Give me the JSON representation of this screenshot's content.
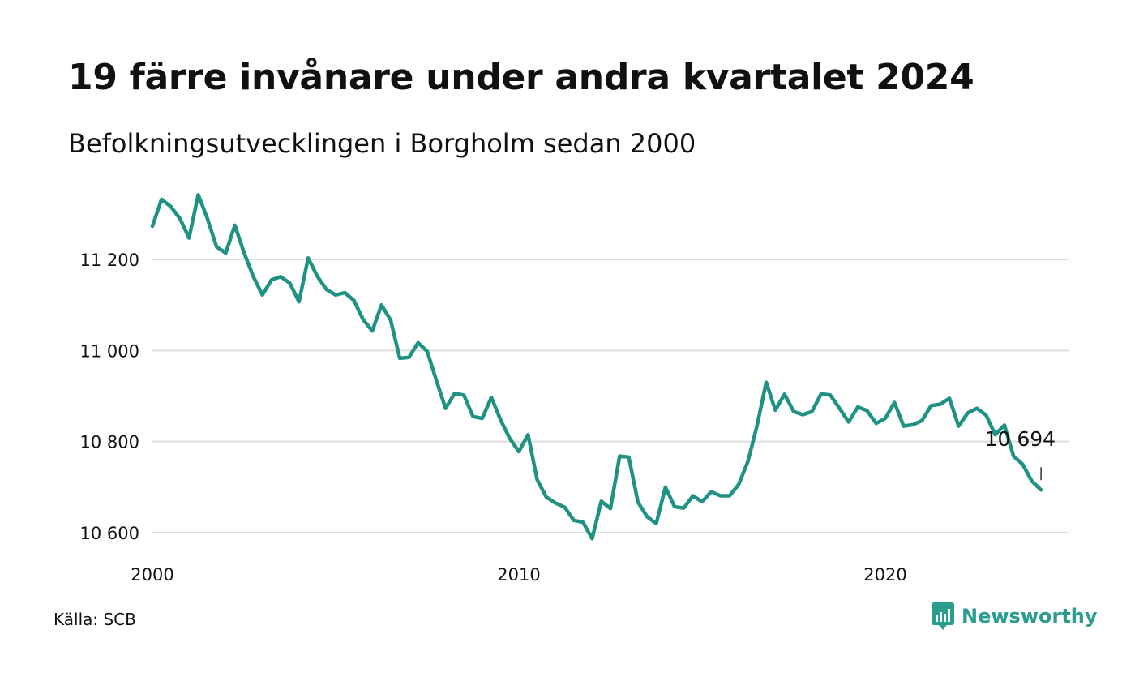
{
  "header": {
    "title": "19 färre invånare under andra kvartalet 2024",
    "subtitle": "Befolkningsutvecklingen i Borgholm sedan 2000"
  },
  "footer": {
    "source": "Källa: SCB",
    "brand": "Newsworthy"
  },
  "colors": {
    "line": "#1f9284",
    "grid": "#dddddd",
    "text": "#111111",
    "brand": "#2a9d8f"
  },
  "chart_data": {
    "type": "line",
    "x_ticks": [
      2000,
      2010,
      2020
    ],
    "x_tick_labels": [
      "2000",
      "2010",
      "2020"
    ],
    "y_ticks": [
      10600,
      10800,
      11000,
      11200
    ],
    "y_tick_labels": [
      "10 600",
      "10 800",
      "11 000",
      "11 200"
    ],
    "xlim": [
      2000,
      2025
    ],
    "ylim": [
      10575,
      11375
    ],
    "grid": true,
    "annotation": {
      "text": "10 694",
      "x": 2024.25,
      "y": 10694
    },
    "x": [
      2000.0,
      2000.25,
      2000.5,
      2000.75,
      2001.0,
      2001.25,
      2001.5,
      2001.75,
      2002.0,
      2002.25,
      2002.5,
      2002.75,
      2003.0,
      2003.25,
      2003.5,
      2003.75,
      2004.0,
      2004.25,
      2004.5,
      2004.75,
      2005.0,
      2005.25,
      2005.5,
      2005.75,
      2006.0,
      2006.25,
      2006.5,
      2006.75,
      2007.0,
      2007.25,
      2007.5,
      2007.75,
      2008.0,
      2008.25,
      2008.5,
      2008.75,
      2009.0,
      2009.25,
      2009.5,
      2009.75,
      2010.0,
      2010.25,
      2010.5,
      2010.75,
      2011.0,
      2011.25,
      2011.5,
      2011.75,
      2012.0,
      2012.25,
      2012.5,
      2012.75,
      2013.0,
      2013.25,
      2013.5,
      2013.75,
      2014.0,
      2014.25,
      2014.5,
      2014.75,
      2015.0,
      2015.25,
      2015.5,
      2015.75,
      2016.0,
      2016.25,
      2016.5,
      2016.75,
      2017.0,
      2017.25,
      2017.5,
      2017.75,
      2018.0,
      2018.25,
      2018.5,
      2018.75,
      2019.0,
      2019.25,
      2019.5,
      2019.75,
      2020.0,
      2020.25,
      2020.5,
      2020.75,
      2021.0,
      2021.25,
      2021.5,
      2021.75,
      2022.0,
      2022.25,
      2022.5,
      2022.75,
      2023.0,
      2023.25,
      2023.5,
      2023.75,
      2024.0,
      2024.25
    ],
    "series": [
      {
        "values": [
          11273,
          11332,
          11316,
          11290,
          11247,
          11342,
          11290,
          11228,
          11214,
          11275,
          11215,
          11163,
          11122,
          11155,
          11162,
          11148,
          11107,
          11203,
          11163,
          11134,
          11122,
          11127,
          11110,
          11068,
          11043,
          11100,
          11067,
          10983,
          10985,
          11017,
          10998,
          10934,
          10873,
          10906,
          10902,
          10855,
          10851,
          10897,
          10848,
          10807,
          10778,
          10815,
          10716,
          10678,
          10665,
          10656,
          10627,
          10623,
          10587,
          10669,
          10653,
          10768,
          10766,
          10667,
          10635,
          10620,
          10700,
          10657,
          10654,
          10681,
          10668,
          10690,
          10681,
          10681,
          10706,
          10756,
          10835,
          10930,
          10869,
          10904,
          10866,
          10859,
          10866,
          10905,
          10902,
          10873,
          10843,
          10876,
          10868,
          10840,
          10851,
          10886,
          10834,
          10837,
          10846,
          10879,
          10882,
          10895,
          10834,
          10863,
          10873,
          10858,
          10815,
          10836,
          10768,
          10750,
          10713,
          10694
        ]
      }
    ]
  }
}
